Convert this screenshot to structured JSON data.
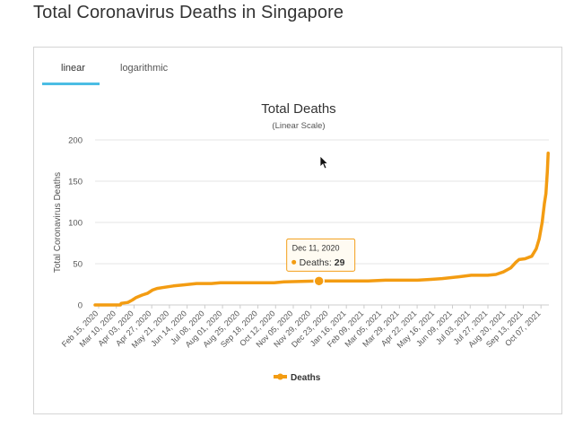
{
  "page": {
    "title": "Total Coronavirus Deaths in Singapore"
  },
  "tabs": [
    {
      "label": "linear",
      "active": true
    },
    {
      "label": "logarithmic",
      "active": false
    }
  ],
  "colors": {
    "series": "#f39c12",
    "accent_tab": "#4bbde4",
    "grid": "#e6e6e6"
  },
  "chart_data": {
    "type": "line",
    "title": "Total Deaths",
    "subtitle": "(Linear Scale)",
    "ylabel": "Total Coronavirus Deaths",
    "xlabel": "",
    "ylim": [
      0,
      200
    ],
    "yticks": [
      0,
      50,
      100,
      150,
      200
    ],
    "grid": true,
    "legend_position": "bottom-center",
    "x_ticks": [
      "Feb 15, 2020",
      "Mar 10, 2020",
      "Apr 03, 2020",
      "Apr 27, 2020",
      "May 21, 2020",
      "Jun 14, 2020",
      "Jul 08, 2020",
      "Aug 01, 2020",
      "Aug 25, 2020",
      "Sep 18, 2020",
      "Oct 12, 2020",
      "Nov 05, 2020",
      "Nov 29, 2020",
      "Dec 23, 2020",
      "Jan 16, 2021",
      "Feb 09, 2021",
      "Mar 05, 2021",
      "Mar 29, 2021",
      "Apr 22, 2021",
      "May 16, 2021",
      "Jun 09, 2021",
      "Jul 03, 2021",
      "Jul 27, 2021",
      "Aug 20, 2021",
      "Sep 13, 2021",
      "Oct 07, 2021"
    ],
    "x_range": [
      "2020-02-15",
      "2021-10-15"
    ],
    "series": [
      {
        "name": "Deaths",
        "points": [
          [
            "2020-02-15",
            0
          ],
          [
            "2020-03-20",
            0
          ],
          [
            "2020-03-21",
            2
          ],
          [
            "2020-03-30",
            3
          ],
          [
            "2020-04-05",
            6
          ],
          [
            "2020-04-10",
            9
          ],
          [
            "2020-04-18",
            12
          ],
          [
            "2020-04-25",
            14
          ],
          [
            "2020-05-02",
            18
          ],
          [
            "2020-05-08",
            20
          ],
          [
            "2020-05-15",
            21
          ],
          [
            "2020-05-22",
            22
          ],
          [
            "2020-05-30",
            23
          ],
          [
            "2020-06-10",
            24
          ],
          [
            "2020-06-20",
            25
          ],
          [
            "2020-06-30",
            26
          ],
          [
            "2020-07-20",
            26
          ],
          [
            "2020-08-01",
            27
          ],
          [
            "2020-09-15",
            27
          ],
          [
            "2020-10-12",
            27
          ],
          [
            "2020-10-25",
            28
          ],
          [
            "2020-12-11",
            29
          ],
          [
            "2021-01-10",
            29
          ],
          [
            "2021-02-15",
            29
          ],
          [
            "2021-03-10",
            30
          ],
          [
            "2021-04-22",
            30
          ],
          [
            "2021-05-10",
            31
          ],
          [
            "2021-05-25",
            32
          ],
          [
            "2021-06-15",
            34
          ],
          [
            "2021-07-03",
            36
          ],
          [
            "2021-07-25",
            36
          ],
          [
            "2021-08-05",
            37
          ],
          [
            "2021-08-15",
            40
          ],
          [
            "2021-08-25",
            45
          ],
          [
            "2021-09-01",
            52
          ],
          [
            "2021-09-05",
            55
          ],
          [
            "2021-09-13",
            56
          ],
          [
            "2021-09-22",
            59
          ],
          [
            "2021-09-28",
            68
          ],
          [
            "2021-10-02",
            80
          ],
          [
            "2021-10-06",
            100
          ],
          [
            "2021-10-09",
            123
          ],
          [
            "2021-10-11",
            135
          ],
          [
            "2021-10-13",
            162
          ],
          [
            "2021-10-14",
            184
          ]
        ]
      }
    ],
    "tooltip": {
      "date": "Dec 11, 2020",
      "series": "Deaths",
      "value": 29,
      "x": "2020-12-11"
    }
  }
}
